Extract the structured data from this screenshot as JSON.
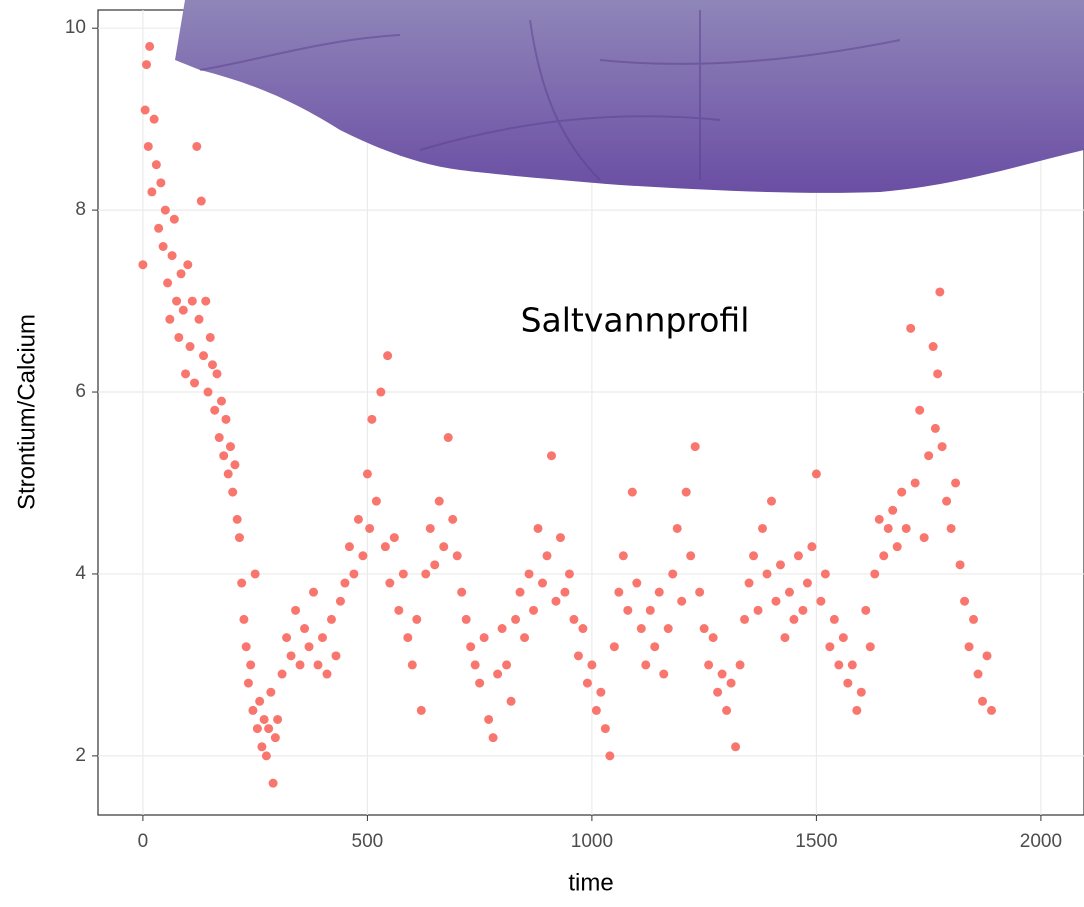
{
  "chart_data": {
    "type": "scatter",
    "x_label": "time",
    "y_label": "Strontium/Calcium",
    "annotation": "Saltvannprofil",
    "xlim": [
      -100,
      2096
    ],
    "ylim": [
      1.35,
      10.2
    ],
    "xticks": [
      0,
      500,
      1000,
      1500,
      2000
    ],
    "yticks": [
      2,
      4,
      6,
      8,
      10
    ],
    "grid": true,
    "series": [
      {
        "color": "#F8766D",
        "x": [
          0,
          5,
          8,
          12,
          15,
          20,
          25,
          30,
          35,
          40,
          45,
          50,
          55,
          60,
          65,
          70,
          75,
          80,
          85,
          90,
          95,
          100,
          105,
          110,
          115,
          120,
          125,
          130,
          135,
          140,
          145,
          150,
          155,
          160,
          165,
          170,
          175,
          180,
          185,
          190,
          195,
          200,
          205,
          210,
          215,
          220,
          225,
          230,
          235,
          240,
          245,
          250,
          255,
          260,
          265,
          270,
          275,
          280,
          285,
          290,
          295,
          300,
          310,
          320,
          330,
          340,
          350,
          360,
          370,
          380,
          390,
          400,
          410,
          420,
          430,
          440,
          450,
          460,
          470,
          480,
          490,
          500,
          505,
          510,
          520,
          530,
          540,
          545,
          550,
          560,
          570,
          580,
          590,
          600,
          610,
          620,
          630,
          640,
          650,
          660,
          670,
          680,
          690,
          700,
          710,
          720,
          730,
          740,
          750,
          760,
          770,
          780,
          790,
          800,
          810,
          820,
          830,
          840,
          850,
          860,
          870,
          880,
          890,
          900,
          910,
          920,
          930,
          940,
          950,
          960,
          970,
          980,
          990,
          1000,
          1010,
          1020,
          1030,
          1040,
          1050,
          1060,
          1070,
          1080,
          1090,
          1100,
          1110,
          1120,
          1130,
          1140,
          1150,
          1160,
          1170,
          1180,
          1190,
          1200,
          1210,
          1220,
          1230,
          1240,
          1250,
          1260,
          1270,
          1280,
          1290,
          1300,
          1310,
          1320,
          1330,
          1340,
          1350,
          1360,
          1370,
          1380,
          1390,
          1400,
          1410,
          1420,
          1430,
          1440,
          1450,
          1460,
          1470,
          1480,
          1490,
          1500,
          1510,
          1520,
          1530,
          1540,
          1550,
          1560,
          1570,
          1580,
          1590,
          1600,
          1610,
          1620,
          1630,
          1640,
          1650,
          1660,
          1670,
          1680,
          1690,
          1700,
          1710,
          1720,
          1730,
          1740,
          1750,
          1760,
          1765,
          1770,
          1775,
          1780,
          1790,
          1800,
          1810,
          1820,
          1830,
          1840,
          1850,
          1860,
          1870,
          1880,
          1890
        ],
        "values": [
          7.4,
          9.1,
          9.6,
          8.7,
          9.8,
          8.2,
          9.0,
          8.5,
          7.8,
          8.3,
          7.6,
          8.0,
          7.2,
          6.8,
          7.5,
          7.9,
          7.0,
          6.6,
          7.3,
          6.9,
          6.2,
          7.4,
          6.5,
          7.0,
          6.1,
          8.7,
          6.8,
          8.1,
          6.4,
          7.0,
          6.0,
          6.6,
          6.3,
          5.8,
          6.2,
          5.5,
          5.9,
          5.3,
          5.7,
          5.1,
          5.4,
          4.9,
          5.2,
          4.6,
          4.4,
          3.9,
          3.5,
          3.2,
          2.8,
          3.0,
          2.5,
          4.0,
          2.3,
          2.6,
          2.1,
          2.4,
          2.0,
          2.3,
          2.7,
          1.7,
          2.2,
          2.4,
          2.9,
          3.3,
          3.1,
          3.6,
          3.0,
          3.4,
          3.2,
          3.8,
          3.0,
          3.3,
          2.9,
          3.5,
          3.1,
          3.7,
          3.9,
          4.3,
          4.0,
          4.6,
          4.2,
          5.1,
          4.5,
          5.7,
          4.8,
          6.0,
          4.3,
          6.4,
          3.9,
          4.4,
          3.6,
          4.0,
          3.3,
          3.0,
          3.5,
          2.5,
          4.0,
          4.5,
          4.1,
          4.8,
          4.3,
          5.5,
          4.6,
          4.2,
          3.8,
          3.5,
          3.2,
          3.0,
          2.8,
          3.3,
          2.4,
          2.2,
          2.9,
          3.4,
          3.0,
          2.6,
          3.5,
          3.8,
          3.3,
          4.0,
          3.6,
          4.5,
          3.9,
          4.2,
          5.3,
          3.7,
          4.4,
          3.8,
          4.0,
          3.5,
          3.1,
          3.4,
          2.8,
          3.0,
          2.5,
          2.7,
          2.3,
          2.0,
          3.2,
          3.8,
          4.2,
          3.6,
          4.9,
          3.9,
          3.4,
          3.0,
          3.6,
          3.2,
          3.8,
          2.9,
          3.4,
          4.0,
          4.5,
          3.7,
          4.9,
          4.2,
          5.4,
          3.8,
          3.4,
          3.0,
          3.3,
          2.7,
          2.9,
          2.5,
          2.8,
          2.1,
          3.0,
          3.5,
          3.9,
          4.2,
          3.6,
          4.5,
          4.0,
          4.8,
          3.7,
          4.1,
          3.3,
          3.8,
          3.5,
          4.2,
          3.6,
          3.9,
          4.3,
          5.1,
          3.7,
          4.0,
          3.2,
          3.5,
          3.0,
          3.3,
          2.8,
          3.0,
          2.5,
          2.7,
          3.6,
          3.2,
          4.0,
          4.6,
          4.2,
          4.5,
          4.7,
          4.3,
          4.9,
          4.5,
          6.7,
          5.0,
          5.8,
          4.4,
          5.3,
          6.5,
          5.6,
          6.2,
          7.1,
          5.4,
          4.8,
          4.5,
          5.0,
          4.1,
          3.7,
          3.2,
          3.5,
          2.9,
          2.6,
          3.1,
          2.5
        ]
      }
    ]
  }
}
